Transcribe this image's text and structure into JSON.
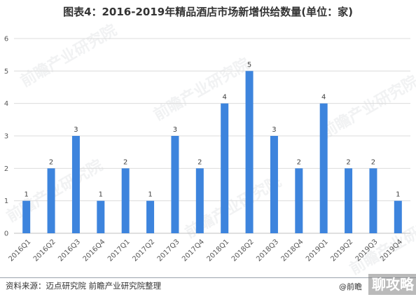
{
  "header": {
    "title": "图表4：2016-2019年精品酒店市场新增供给数量(单位：家)"
  },
  "footer": {
    "source": "资料来源：迈点研究院 前瞻产业研究院整理",
    "brand": "@前瞻",
    "site_badge": "聊攻略"
  },
  "watermark": {
    "text": "前瞻产业研究院"
  },
  "colors": {
    "bar": "#3d84dd",
    "grid": "#dcdcdc"
  },
  "chart_data": {
    "type": "bar",
    "title": "图表4：2016-2019年精品酒店市场新增供给数量(单位：家)",
    "xlabel": "",
    "ylabel": "",
    "categories": [
      "2016Q1",
      "2016Q2",
      "2016Q3",
      "2016Q4",
      "2017Q1",
      "2017Q2",
      "2017Q3",
      "2017Q4",
      "2018Q1",
      "2018Q2",
      "2018Q3",
      "2018Q4",
      "2019Q1",
      "2019Q2",
      "2019Q3",
      "2019Q4"
    ],
    "values": [
      1,
      2,
      3,
      1,
      2,
      1,
      3,
      2,
      4,
      5,
      3,
      2,
      4,
      2,
      2,
      1
    ],
    "ylim": [
      0,
      6
    ],
    "yticks": [
      0,
      1,
      2,
      3,
      4,
      5,
      6
    ],
    "grid": true,
    "legend": "none",
    "data_labels": true
  }
}
